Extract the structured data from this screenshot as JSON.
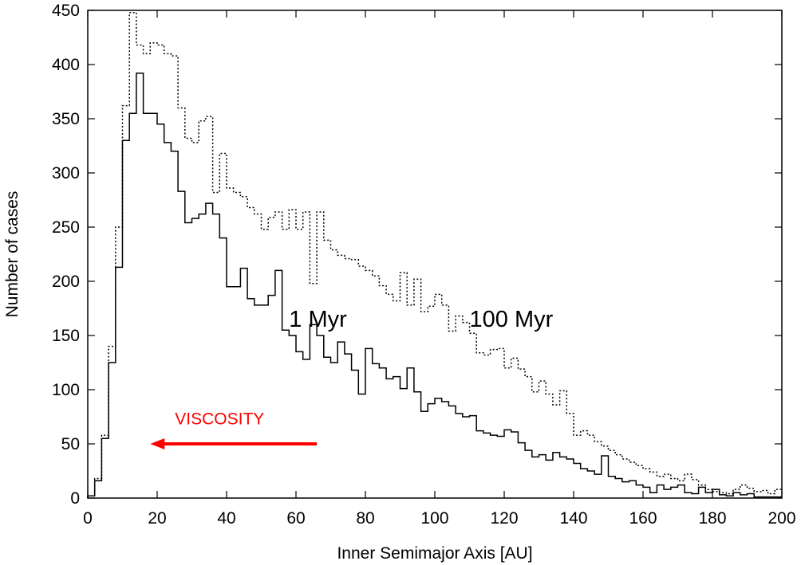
{
  "chart_data": {
    "type": "histogram-step",
    "title": "",
    "xlabel": "Inner Semimajor Axis [AU]",
    "ylabel": "Number of cases",
    "xlim": [
      0,
      200
    ],
    "ylim": [
      0,
      450
    ],
    "bin_width": 2,
    "xticks": [
      0,
      20,
      40,
      60,
      80,
      100,
      120,
      140,
      160,
      180,
      200
    ],
    "yticks": [
      0,
      50,
      100,
      150,
      200,
      250,
      300,
      350,
      400,
      450
    ],
    "series": [
      {
        "name": "1 Myr",
        "style": "solid",
        "values": [
          2,
          16,
          55,
          125,
          213,
          330,
          355,
          392,
          355,
          355,
          345,
          328,
          320,
          283,
          254,
          258,
          262,
          272,
          262,
          240,
          195,
          195,
          212,
          184,
          178,
          178,
          187,
          210,
          155,
          150,
          135,
          128,
          160,
          150,
          130,
          125,
          144,
          133,
          118,
          96,
          138,
          124,
          120,
          110,
          112,
          101,
          120,
          98,
          80,
          87,
          92,
          89,
          85,
          78,
          75,
          76,
          62,
          60,
          58,
          57,
          63,
          61,
          51,
          44,
          38,
          40,
          35,
          42,
          38,
          36,
          32,
          27,
          25,
          22,
          39,
          20,
          18,
          15,
          16,
          12,
          10,
          5,
          12,
          8,
          10,
          12,
          5,
          4,
          10,
          5,
          8,
          3,
          2,
          5,
          3,
          4,
          1,
          1,
          1,
          1
        ]
      },
      {
        "name": "100 Myr",
        "style": "dotted",
        "values": [
          2,
          18,
          58,
          140,
          250,
          362,
          448,
          418,
          410,
          420,
          418,
          410,
          408,
          360,
          332,
          328,
          348,
          352,
          282,
          318,
          286,
          282,
          278,
          268,
          262,
          248,
          259,
          264,
          248,
          266,
          248,
          264,
          198,
          264,
          238,
          229,
          224,
          221,
          220,
          214,
          210,
          205,
          196,
          188,
          182,
          208,
          178,
          202,
          172,
          177,
          188,
          178,
          154,
          168,
          162,
          152,
          134,
          132,
          137,
          138,
          120,
          129,
          119,
          112,
          98,
          108,
          96,
          86,
          99,
          78,
          58,
          62,
          58,
          52,
          48,
          44,
          40,
          36,
          33,
          30,
          27,
          24,
          20,
          22,
          18,
          16,
          22,
          17,
          12,
          8,
          6,
          5,
          4,
          8,
          12,
          9,
          6,
          7,
          4,
          8
        ]
      }
    ],
    "annotations": [
      {
        "text": "1 Myr",
        "x": 58,
        "y": 155
      },
      {
        "text": "100 Myr",
        "x": 110,
        "y": 155
      },
      {
        "text": "VISCOSITY",
        "x": 38,
        "y": 68,
        "color": "#ff0000",
        "arrow_from": [
          66,
          50
        ],
        "arrow_to": [
          18,
          50
        ]
      }
    ]
  }
}
